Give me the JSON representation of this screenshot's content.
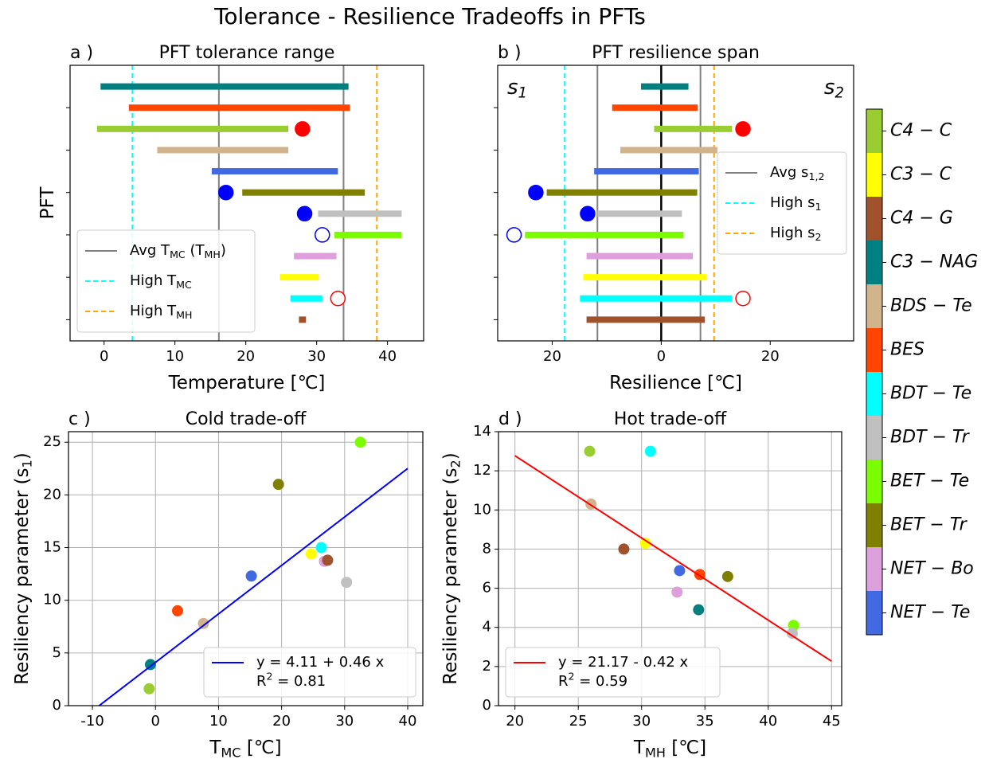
{
  "title": "Tolerance - Resilience Tradeoffs in PFTs",
  "colorbar": {
    "labels": [
      "C4 − C",
      "C3 − C",
      "C4 − G",
      "C3 − NAG",
      "BDS − Te",
      "BES",
      "BDT − Te",
      "BDT − Tr",
      "BET − Te",
      "BET − Tr",
      "NET − Bo",
      "NET − Te"
    ],
    "colors": [
      "#9acd32",
      "#ffff00",
      "#a0522d",
      "#008080",
      "#d2b48c",
      "#ff4500",
      "#00ffff",
      "#c0c0c0",
      "#7cfc00",
      "#808000",
      "#dda0dd",
      "#4169e1"
    ]
  },
  "chart_data": [
    {
      "type": "range",
      "panel_label": "a )",
      "title": "PFT tolerance range",
      "xlabel": "Temperature [℃]",
      "ylabel": "PFT",
      "categories": [
        null,
        null,
        null,
        null,
        null,
        null,
        null,
        null,
        null,
        null,
        null,
        null
      ],
      "ranges": [
        [
          -0.5,
          34.5
        ],
        [
          3.5,
          34.7
        ],
        [
          -1,
          26
        ],
        [
          7.5,
          26
        ],
        [
          15.2,
          33
        ],
        [
          19.5,
          36.8
        ],
        [
          30.2,
          42
        ],
        [
          32.5,
          42
        ],
        [
          26.8,
          32.8
        ],
        [
          24.8,
          30.3
        ],
        [
          26.3,
          30.8
        ],
        [
          27.5,
          28.5
        ]
      ],
      "colors": [
        "#008080",
        "#ff4500",
        "#9acd32",
        "#d2b48c",
        "#4169e1",
        "#808000",
        "#c0c0c0",
        "#7cfc00",
        "#dda0dd",
        "#ffff00",
        "#00ffff",
        "#a0522d"
      ],
      "markers": [
        {
          "row": 2,
          "value": 28,
          "color": "#ff0000",
          "filled": true
        },
        {
          "row": 5,
          "value": 17.2,
          "color": "#0000ff",
          "filled": true
        },
        {
          "row": 6,
          "value": 28.3,
          "color": "#0000ff",
          "filled": true
        },
        {
          "row": 7,
          "value": 30.8,
          "color": "#0000ff",
          "filled": false
        },
        {
          "row": 10,
          "value": 33,
          "color": "#ff0000",
          "filled": false
        }
      ],
      "lines": [
        {
          "name": "Avg T_{MC} (T_{MH})",
          "color": "#808080",
          "dash": false,
          "values": [
            16.2,
            33.8
          ]
        },
        {
          "name": "High T_{MC}",
          "color": "#00ffff",
          "dash": true,
          "values": [
            4
          ]
        },
        {
          "name": "High T_{MH}",
          "color": "#ffa500",
          "dash": true,
          "values": [
            38.5
          ]
        }
      ],
      "legend": "lower left",
      "xlim": [
        -4.8,
        45.1
      ],
      "xticks": [
        0,
        10,
        20,
        30,
        40
      ]
    },
    {
      "type": "range",
      "panel_label": "b )",
      "title": "PFT resilience span",
      "xlabel": "Resilience [℃]",
      "annotations": [
        "s_{1}",
        "s_{2}"
      ],
      "categories": [
        null,
        null,
        null,
        null,
        null,
        null,
        null,
        null,
        null,
        null,
        null,
        null
      ],
      "ranges": [
        [
          -3.7,
          5
        ],
        [
          -9,
          6.7
        ],
        [
          -1.3,
          13
        ],
        [
          -7.5,
          10.3
        ],
        [
          -12.3,
          6.9
        ],
        [
          -21,
          6.6
        ],
        [
          -11.7,
          3.8
        ],
        [
          -25,
          4.1
        ],
        [
          -13.7,
          5.8
        ],
        [
          -14.3,
          8.3
        ],
        [
          -14.9,
          13
        ],
        [
          -13.7,
          8
        ]
      ],
      "colors": [
        "#008080",
        "#ff4500",
        "#9acd32",
        "#d2b48c",
        "#4169e1",
        "#808000",
        "#c0c0c0",
        "#7cfc00",
        "#dda0dd",
        "#ffff00",
        "#00ffff",
        "#a0522d"
      ],
      "markers": [
        {
          "row": 2,
          "value": 15,
          "color": "#ff0000",
          "filled": true
        },
        {
          "row": 5,
          "value": -23,
          "color": "#0000ff",
          "filled": true
        },
        {
          "row": 6,
          "value": -13.5,
          "color": "#0000ff",
          "filled": true
        },
        {
          "row": 7,
          "value": -27,
          "color": "#0000ff",
          "filled": false
        },
        {
          "row": 10,
          "value": 15,
          "color": "#ff0000",
          "filled": false
        }
      ],
      "lines": [
        {
          "name": "Avg s_{1,2}",
          "color": "#808080",
          "dash": false,
          "values": [
            -11.7,
            7.2
          ]
        },
        {
          "name": "High s_{1}",
          "color": "#00ffff",
          "dash": true,
          "values": [
            -17.7
          ]
        },
        {
          "name": "High s_{2}",
          "color": "#ffa500",
          "dash": true,
          "values": [
            9.7
          ]
        }
      ],
      "legend": "center right",
      "xlim": [
        -30,
        35.3
      ],
      "xticks": [
        {
          "value": -20,
          "label": "20"
        },
        0,
        20
      ]
    },
    {
      "type": "scatter",
      "panel_label": "c )",
      "title": "Cold trade-off",
      "xlabel": "T_{MC} [℃]",
      "ylabel": "Resiliency parameter (s_{1})",
      "x": [
        32.5,
        19.5,
        24.7,
        26.3,
        26.8,
        27.3,
        30.3,
        15.2,
        3.5,
        7.6,
        -0.8,
        -1
      ],
      "values": [
        25,
        21,
        14.4,
        15,
        13.7,
        13.8,
        11.7,
        12.3,
        9,
        7.8,
        3.9,
        1.6
      ],
      "colors": [
        "#7cfc00",
        "#808000",
        "#ffff00",
        "#00ffff",
        "#dda0dd",
        "#a0522d",
        "#c0c0c0",
        "#4169e1",
        "#ff4500",
        "#d2b48c",
        "#008080",
        "#9acd32"
      ],
      "fit": {
        "intercept": 4.11,
        "slope": 0.46,
        "xrange": [
          -10,
          40
        ],
        "color": "#0000ff",
        "label": "y = 4.11 + 0.46 x",
        "r2_label": "R^{2} = 0.81"
      },
      "legend": "lower right",
      "grid": true,
      "xlim": [
        -13.8,
        42.4
      ],
      "xticks": [
        -10,
        0,
        10,
        20,
        30,
        40
      ],
      "ylim": [
        0,
        26
      ],
      "yticks": [
        0,
        5,
        10,
        15,
        20,
        25
      ]
    },
    {
      "type": "scatter",
      "panel_label": "d )",
      "title": "Hot trade-off",
      "xlabel": "T_{MH} [℃]",
      "ylabel": "Resiliency parameter (s_{2})",
      "x": [
        25.9,
        30.7,
        26,
        28.6,
        30.3,
        33,
        34.6,
        36.8,
        32.8,
        34.5,
        42,
        41.9
      ],
      "values": [
        13,
        13,
        10.3,
        8,
        8.3,
        6.9,
        6.7,
        6.6,
        5.8,
        4.9,
        4.1,
        3.7
      ],
      "colors": [
        "#9acd32",
        "#00ffff",
        "#d2b48c",
        "#a0522d",
        "#ffff00",
        "#4169e1",
        "#ff4500",
        "#808000",
        "#dda0dd",
        "#008080",
        "#7cfc00",
        "#c0c0c0"
      ],
      "fit": {
        "intercept": 21.17,
        "slope": -0.42,
        "xrange": [
          20,
          45
        ],
        "color": "#ff0000",
        "label": "y = 21.17 - 0.42 x",
        "r2_label": "R^{2} = 0.59"
      },
      "legend": "lower left",
      "grid": true,
      "xlim": [
        18.7,
        45.8
      ],
      "xticks": [
        20,
        25,
        30,
        35,
        40,
        45
      ],
      "ylim": [
        0,
        14
      ],
      "yticks": [
        0,
        2,
        4,
        6,
        8,
        10,
        12,
        14
      ]
    }
  ]
}
